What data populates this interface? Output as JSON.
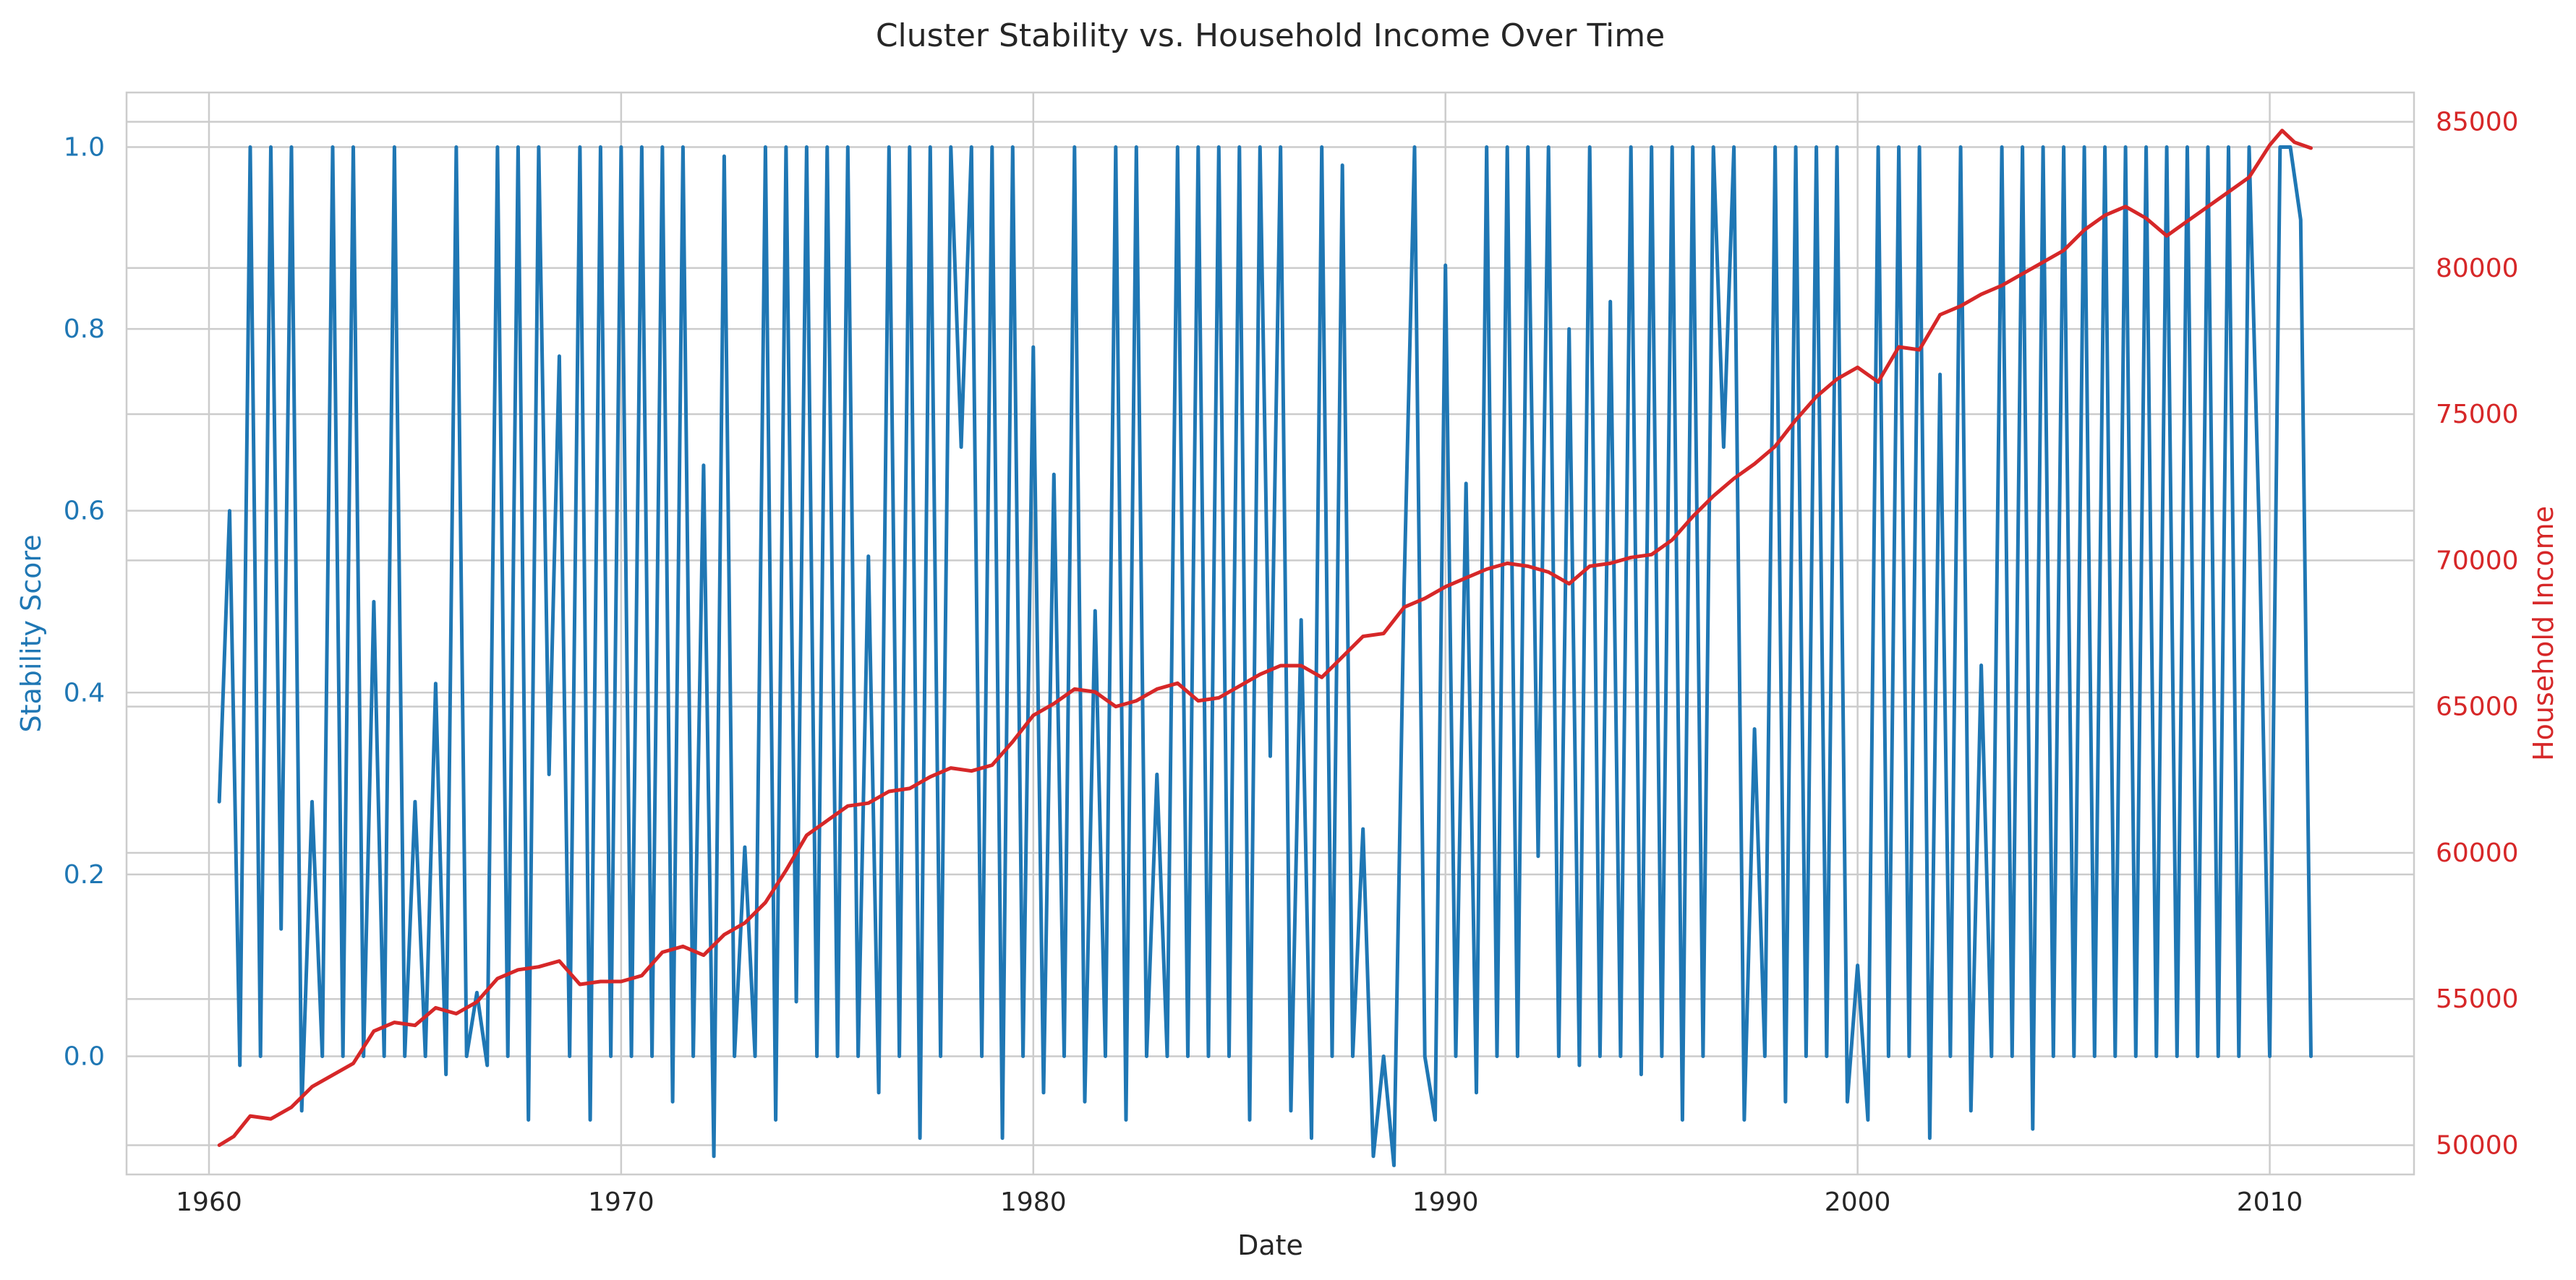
{
  "chart_data": {
    "type": "line",
    "title": "Cluster Stability vs. Household Income Over Time",
    "xlabel": "Date",
    "ylabel_left": "Stability Score",
    "ylabel_right": "Household Income",
    "xlim": [
      1958,
      2013.5
    ],
    "ylim_left": [
      -0.13,
      1.06
    ],
    "ylim_right": [
      49000,
      86000
    ],
    "x_ticks": [
      1960,
      1970,
      1980,
      1990,
      2000,
      2010
    ],
    "y_ticks_left": [
      0.0,
      0.2,
      0.4,
      0.6,
      0.8,
      1.0
    ],
    "y_tick_labels_left": [
      "0.0",
      "0.2",
      "0.4",
      "0.6",
      "0.8",
      "1.0"
    ],
    "y_ticks_right": [
      50000,
      55000,
      60000,
      65000,
      70000,
      75000,
      80000,
      85000
    ],
    "y_tick_labels_right": [
      "50000",
      "55000",
      "60000",
      "65000",
      "70000",
      "75000",
      "80000",
      "85000"
    ],
    "grid": true,
    "colors": {
      "stability": "#1f77b4",
      "income": "#d62728",
      "grid": "#cccccc",
      "text": "#262626"
    },
    "series": [
      {
        "axis": "left",
        "x": [
          1960.25,
          1960.5,
          1960.75,
          1961.0,
          1961.25,
          1961.5,
          1961.75,
          1962.0,
          1962.25,
          1962.5,
          1962.75,
          1963.0,
          1963.25,
          1963.5,
          1963.75,
          1964.0,
          1964.25,
          1964.5,
          1964.75,
          1965.0,
          1965.25,
          1965.5,
          1965.75,
          1966.0,
          1966.25,
          1966.5,
          1966.75,
          1967.0,
          1967.25,
          1967.5,
          1967.75,
          1968.0,
          1968.25,
          1968.5,
          1968.75,
          1969.0,
          1969.25,
          1969.5,
          1969.75,
          1970.0,
          1970.25,
          1970.5,
          1970.75,
          1971.0,
          1971.25,
          1971.5,
          1971.75,
          1972.0,
          1972.25,
          1972.5,
          1972.75,
          1973.0,
          1973.25,
          1973.5,
          1973.75,
          1974.0,
          1974.25,
          1974.5,
          1974.75,
          1975.0,
          1975.25,
          1975.5,
          1975.75,
          1976.0,
          1976.25,
          1976.5,
          1976.75,
          1977.0,
          1977.25,
          1977.5,
          1977.75,
          1978.0,
          1978.25,
          1978.5,
          1978.75,
          1979.0,
          1979.25,
          1979.5,
          1979.75,
          1980.0,
          1980.25,
          1980.5,
          1980.75,
          1981.0,
          1981.25,
          1981.5,
          1981.75,
          1982.0,
          1982.25,
          1982.5,
          1982.75,
          1983.0,
          1983.25,
          1983.5,
          1983.75,
          1984.0,
          1984.25,
          1984.5,
          1984.75,
          1985.0,
          1985.25,
          1985.5,
          1985.75,
          1986.0,
          1986.25,
          1986.5,
          1986.75,
          1987.0,
          1987.25,
          1987.5,
          1987.75,
          1988.0,
          1988.25,
          1988.5,
          1988.75,
          1989.0,
          1989.25,
          1989.5,
          1989.75,
          1990.0,
          1990.25,
          1990.5,
          1990.75,
          1991.0,
          1991.25,
          1991.5,
          1991.75,
          1992.0,
          1992.25,
          1992.5,
          1992.75,
          1993.0,
          1993.25,
          1993.5,
          1993.75,
          1994.0,
          1994.25,
          1994.5,
          1994.75,
          1995.0,
          1995.25,
          1995.5,
          1995.75,
          1996.0,
          1996.25,
          1996.5,
          1996.75,
          1997.0,
          1997.25,
          1997.5,
          1997.75,
          1998.0,
          1998.25,
          1998.5,
          1998.75,
          1999.0,
          1999.25,
          1999.5,
          1999.75,
          2000.0,
          2000.25,
          2000.5,
          2000.75,
          2001.0,
          2001.25,
          2001.5,
          2001.75,
          2002.0,
          2002.25,
          2002.5,
          2002.75,
          2003.0,
          2003.25,
          2003.5,
          2003.75,
          2004.0,
          2004.25,
          2004.5,
          2004.75,
          2005.0,
          2005.25,
          2005.5,
          2005.75,
          2006.0,
          2006.25,
          2006.5,
          2006.75,
          2007.0,
          2007.25,
          2007.5,
          2007.75,
          2008.0,
          2008.25,
          2008.5,
          2008.75,
          2009.0,
          2009.25,
          2009.5,
          2009.75,
          2010.0,
          2010.25,
          2010.5,
          2010.75,
          2011.0
        ],
        "values": [
          0.28,
          0.6,
          -0.01,
          1.0,
          0.0,
          1.0,
          0.14,
          1.0,
          -0.06,
          0.28,
          0.0,
          1.0,
          0.0,
          1.0,
          0.0,
          0.5,
          0.0,
          1.0,
          0.0,
          0.28,
          0.0,
          0.41,
          -0.02,
          1.0,
          0.0,
          0.07,
          -0.01,
          1.0,
          0.0,
          1.0,
          -0.07,
          1.0,
          0.31,
          0.77,
          0.0,
          1.0,
          -0.07,
          1.0,
          0.0,
          1.0,
          0.0,
          1.0,
          0.0,
          1.0,
          -0.05,
          1.0,
          0.0,
          0.65,
          -0.11,
          0.99,
          0.0,
          0.23,
          0.0,
          1.0,
          -0.07,
          1.0,
          0.06,
          1.0,
          0.0,
          1.0,
          0.0,
          1.0,
          0.0,
          0.55,
          -0.04,
          1.0,
          0.0,
          1.0,
          -0.09,
          1.0,
          0.0,
          1.0,
          0.67,
          1.0,
          0.0,
          1.0,
          -0.09,
          1.0,
          0.0,
          0.78,
          -0.04,
          0.64,
          0.0,
          1.0,
          -0.05,
          0.49,
          0.0,
          1.0,
          -0.07,
          1.0,
          0.0,
          0.31,
          0.0,
          1.0,
          0.0,
          1.0,
          0.0,
          1.0,
          0.0,
          1.0,
          -0.07,
          1.0,
          0.33,
          1.0,
          -0.06,
          0.48,
          -0.09,
          1.0,
          0.0,
          0.98,
          0.0,
          0.25,
          -0.11,
          0.0,
          -0.12,
          0.52,
          1.0,
          0.0,
          -0.07,
          0.87,
          0.0,
          0.63,
          -0.04,
          1.0,
          0.0,
          1.0,
          0.0,
          1.0,
          0.22,
          1.0,
          0.0,
          0.8,
          -0.01,
          1.0,
          0.0,
          0.83,
          0.0,
          1.0,
          -0.02,
          1.0,
          0.0,
          1.0,
          -0.07,
          1.0,
          0.0,
          1.0,
          0.67,
          1.0,
          -0.07,
          0.36,
          0.0,
          1.0,
          -0.05,
          1.0,
          0.0,
          1.0,
          0.0,
          1.0,
          -0.05,
          0.1,
          -0.07,
          1.0,
          0.0,
          1.0,
          0.0,
          1.0,
          -0.09,
          0.75,
          0.0,
          1.0,
          -0.06,
          0.43,
          0.0,
          1.0,
          0.0,
          1.0,
          -0.08,
          1.0,
          0.0,
          1.0,
          0.0,
          1.0,
          0.0,
          1.0,
          0.0,
          1.0,
          0.0,
          1.0,
          0.0,
          1.0,
          0.0,
          1.0,
          0.0,
          1.0,
          0.0,
          1.0,
          0.0,
          1.0,
          0.57,
          0.0,
          1.0,
          1.0,
          0.92,
          0.0
        ]
      },
      {
        "axis": "right",
        "x": [
          1960.25,
          1960.6,
          1961.0,
          1961.5,
          1962.0,
          1962.5,
          1963.0,
          1963.5,
          1964.0,
          1964.5,
          1965.0,
          1965.5,
          1966.0,
          1966.5,
          1967.0,
          1967.5,
          1968.0,
          1968.5,
          1969.0,
          1969.5,
          1970.0,
          1970.5,
          1971.0,
          1971.5,
          1972.0,
          1972.5,
          1973.0,
          1973.5,
          1974.0,
          1974.5,
          1975.0,
          1975.5,
          1976.0,
          1976.5,
          1977.0,
          1977.5,
          1978.0,
          1978.5,
          1979.0,
          1979.5,
          1980.0,
          1980.5,
          1981.0,
          1981.5,
          1982.0,
          1982.5,
          1983.0,
          1983.5,
          1984.0,
          1984.5,
          1985.0,
          1985.5,
          1986.0,
          1986.5,
          1987.0,
          1987.5,
          1988.0,
          1988.5,
          1989.0,
          1989.5,
          1990.0,
          1990.5,
          1991.0,
          1991.5,
          1992.0,
          1992.5,
          1993.0,
          1993.5,
          1994.0,
          1994.5,
          1995.0,
          1995.5,
          1996.0,
          1996.5,
          1997.0,
          1997.5,
          1998.0,
          1998.5,
          1999.0,
          1999.5,
          2000.0,
          2000.5,
          2001.0,
          2001.5,
          2002.0,
          2002.5,
          2003.0,
          2003.5,
          2004.0,
          2004.5,
          2005.0,
          2005.5,
          2006.0,
          2006.5,
          2007.0,
          2007.5,
          2008.0,
          2008.5,
          2009.0,
          2009.5,
          2010.0,
          2010.3,
          2010.6,
          2011.0
        ],
        "values": [
          50000,
          50300,
          51000,
          50900,
          51300,
          52000,
          52400,
          52800,
          53900,
          54200,
          54100,
          54700,
          54500,
          54900,
          55700,
          56000,
          56100,
          56300,
          55500,
          55600,
          55600,
          55800,
          56600,
          56800,
          56500,
          57200,
          57600,
          58300,
          59400,
          60600,
          61100,
          61600,
          61700,
          62100,
          62200,
          62600,
          62900,
          62800,
          63000,
          63800,
          64700,
          65100,
          65600,
          65500,
          65000,
          65200,
          65600,
          65800,
          65200,
          65300,
          65700,
          66100,
          66400,
          66400,
          66000,
          66700,
          67400,
          67500,
          68400,
          68700,
          69100,
          69400,
          69700,
          69900,
          69800,
          69600,
          69200,
          69800,
          69900,
          70100,
          70200,
          70700,
          71500,
          72200,
          72800,
          73300,
          73900,
          74800,
          75600,
          76200,
          76600,
          76100,
          77300,
          77200,
          78400,
          78700,
          79100,
          79400,
          79800,
          80200,
          80600,
          81300,
          81800,
          82100,
          81700,
          81100,
          81600,
          82100,
          82600,
          83100,
          84200,
          84700,
          84300,
          84100
        ]
      }
    ]
  }
}
